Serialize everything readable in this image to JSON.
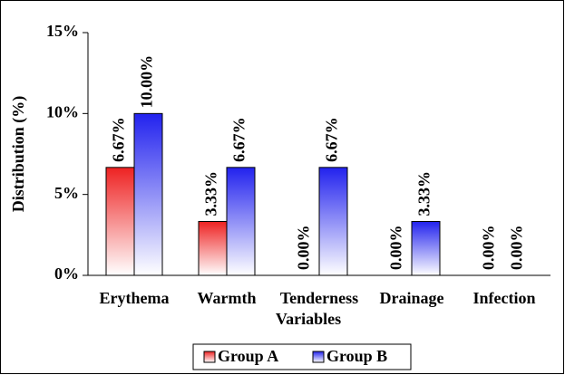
{
  "chart_data": {
    "type": "bar",
    "categories": [
      "Erythema",
      "Warmth",
      "Tenderness",
      "Drainage",
      "Infection"
    ],
    "series": [
      {
        "name": "Group A",
        "color": "#ee2222",
        "values": [
          6.67,
          3.33,
          0,
          0,
          0
        ],
        "value_labels": [
          "6.67%",
          "3.33%",
          "0.00%",
          "0.00%",
          "0.00%"
        ]
      },
      {
        "name": "Group B",
        "color": "#2222ee",
        "values": [
          10,
          6.67,
          6.67,
          3.33,
          0
        ],
        "value_labels": [
          "10.00%",
          "6.67%",
          "6.67%",
          "3.33%",
          "0.00%"
        ]
      }
    ],
    "ylabel": "Distribution (%)",
    "xlabel": "Variables",
    "ylim": [
      0,
      15
    ],
    "yticks": [
      {
        "value": 0,
        "label": "0%"
      },
      {
        "value": 5,
        "label": "5%"
      },
      {
        "value": 10,
        "label": "10%"
      },
      {
        "value": 15,
        "label": "15%"
      }
    ],
    "legend": "bottom"
  }
}
